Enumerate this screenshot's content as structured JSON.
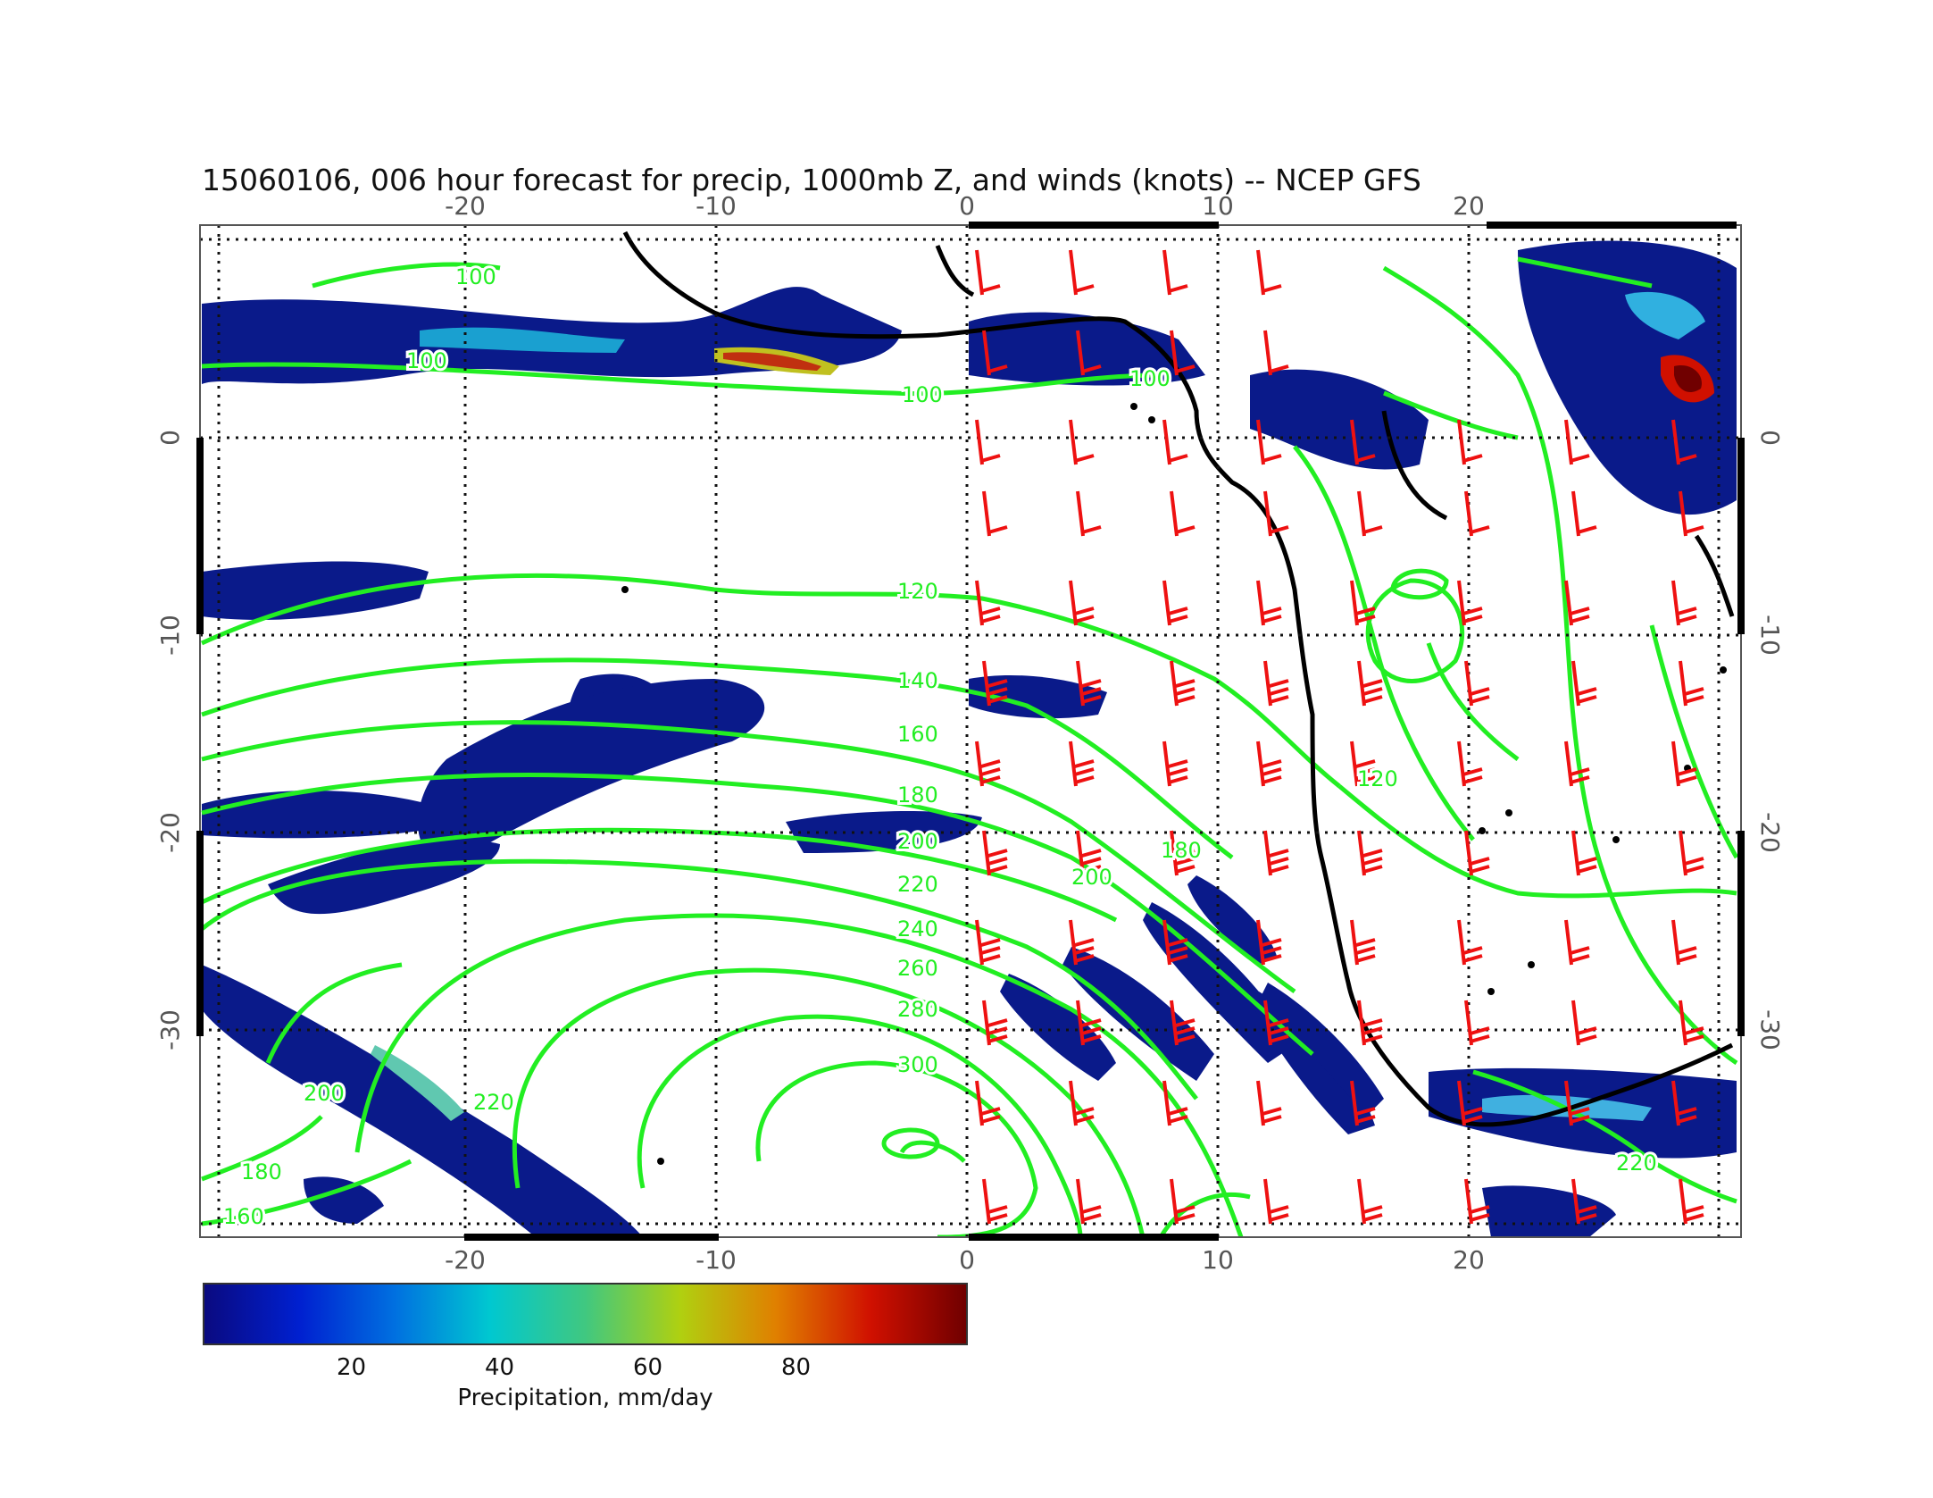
{
  "title": "15060106, 006 hour forecast for precip, 1000mb Z, and winds (knots) -- NCEP GFS",
  "map": {
    "lon_ticks": [
      "-20",
      "-10",
      "0",
      "10",
      "20"
    ],
    "lat_ticks": [
      "0",
      "-10",
      "-20",
      "-30"
    ],
    "contour_levels": [
      "100",
      "120",
      "140",
      "160",
      "180",
      "200",
      "220",
      "240",
      "260",
      "280",
      "300"
    ],
    "contour_color": "#22ee22",
    "barb_color": "#ee1111",
    "coast_color": "#000000"
  },
  "colorbar": {
    "ticks": [
      "20",
      "40",
      "60",
      "80"
    ],
    "label": "Precipitation, mm/day",
    "colors": [
      "#0a0a80",
      "#0020d0",
      "#0070e0",
      "#00c8d0",
      "#40c880",
      "#b0d010",
      "#e08000",
      "#d01000",
      "#700000"
    ]
  }
}
